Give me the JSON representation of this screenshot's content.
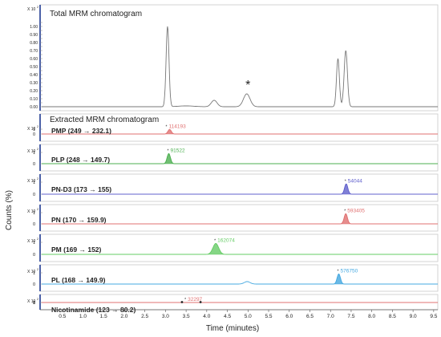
{
  "chart_data": {
    "type": "line",
    "x_axis": {
      "label": "Time (minutes)",
      "range": [
        0,
        9.6
      ],
      "ticks": [
        "0.5",
        "1.0",
        "1.5",
        "2.0",
        "2.5",
        "3.0",
        "3.5",
        "4.0",
        "4.5",
        "5.0",
        "5.5",
        "6.0",
        "6.5",
        "7.0",
        "7.5",
        "8.0",
        "8.5",
        "9.0",
        "9.5"
      ]
    },
    "y_axis": {
      "label": "Counts (%)"
    },
    "total": {
      "title": "Total MRM chromatogram",
      "multiplier": "X 10",
      "multiplier_exp": "2",
      "ylim": [
        0,
        1.05
      ],
      "ticks": [
        "0.00",
        "0.05",
        "0.10",
        "0.15",
        "0.20",
        "0.25",
        "0.30",
        "0.35",
        "0.40",
        "0.45",
        "0.50",
        "0.55",
        "0.60",
        "0.65",
        "0.70",
        "0.75",
        "0.80",
        "0.85",
        "0.90",
        "0.95",
        "1.00",
        "1.05"
      ],
      "annotation": "*",
      "annotation_x": 5.0,
      "annotation_y": 0.2,
      "color": "#777777",
      "peaks": [
        {
          "t": 3.05,
          "h": 1.0,
          "w": 0.035
        },
        {
          "t": 3.5,
          "h": 0.01,
          "w": 0.2
        },
        {
          "t": 4.18,
          "h": 0.08,
          "w": 0.07
        },
        {
          "t": 4.97,
          "h": 0.16,
          "w": 0.08
        },
        {
          "t": 7.18,
          "h": 0.6,
          "w": 0.035
        },
        {
          "t": 7.37,
          "h": 0.7,
          "w": 0.04
        }
      ]
    },
    "extracted_title": "Extracted MRM chromatogram",
    "series": [
      {
        "name": "PMP (249 → 232.1)",
        "area": "114193",
        "color": "#e07070",
        "peaks": [
          {
            "t": 3.1,
            "h": 0.95,
            "w": 0.04,
            "fill": true
          }
        ]
      },
      {
        "name": "PLP (248 → 149.7)",
        "area": "91522",
        "color": "#4caf50",
        "peaks": [
          {
            "t": 3.08,
            "h": 0.9,
            "w": 0.04,
            "fill": true
          }
        ]
      },
      {
        "name": "PN-D3 (173 → 155)",
        "area": "54044",
        "color": "#6060cc",
        "peaks": [
          {
            "t": 7.38,
            "h": 0.85,
            "w": 0.04,
            "fill": true
          }
        ]
      },
      {
        "name": "PN (170 → 159.9)",
        "area": "593405",
        "color": "#e07070",
        "peaks": [
          {
            "t": 7.37,
            "h": 0.9,
            "w": 0.04,
            "fill": true
          }
        ]
      },
      {
        "name": "PM (169 → 152)",
        "area": "162074",
        "color": "#66cc66",
        "peaks": [
          {
            "t": 4.22,
            "h": 0.9,
            "w": 0.07,
            "fill": true
          }
        ]
      },
      {
        "name": "PL (168 → 149.9)",
        "area": "576750",
        "color": "#44a8e0",
        "peaks": [
          {
            "t": 4.98,
            "h": 0.22,
            "w": 0.07,
            "fill": false
          },
          {
            "t": 7.2,
            "h": 0.9,
            "w": 0.04,
            "fill": true
          }
        ]
      },
      {
        "name": "Nicotinamide (123 → 80.2)",
        "area": "32297",
        "color": "#e07070",
        "peaks": [
          {
            "t": 3.5,
            "h": 0.9,
            "w": 0.1,
            "fill": true
          },
          {
            "t": 3.95,
            "h": 0.25,
            "w": 0.08,
            "fill": false
          },
          {
            "t": 4.25,
            "h": 0.12,
            "w": 0.1,
            "fill": false
          },
          {
            "t": 8.2,
            "h": 0.05,
            "w": 0.1,
            "fill": false
          }
        ],
        "markers": [
          3.4,
          3.85
        ]
      }
    ],
    "sub_ticks": [
      "0",
      "1"
    ],
    "sub_multiplier": "X 10",
    "sub_multiplier_exp": "2"
  }
}
